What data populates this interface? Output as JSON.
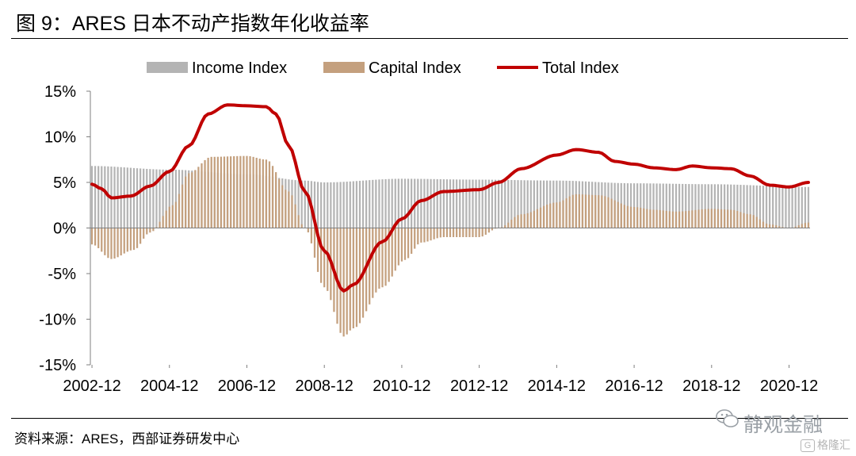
{
  "header": {
    "title": "图 9：ARES 日本不动产指数年化收益率"
  },
  "footer": {
    "source": "资料来源：ARES，西部证券研发中心"
  },
  "watermark": {
    "primary": "静观金融",
    "secondary": "格隆汇",
    "secondary_mark": "G"
  },
  "colors": {
    "income": "#b4b4b4",
    "capital": "#c4a07e",
    "total": "#c00000"
  },
  "chart_data": {
    "type": "bar",
    "title": "",
    "legend": {
      "placement": "top",
      "entries": [
        "Income Index",
        "Capital Index",
        "Total Index"
      ]
    },
    "ylim": [
      -15,
      15
    ],
    "ytick_values": [
      15,
      10,
      5,
      0,
      -5,
      -10,
      -15
    ],
    "ytick_labels": [
      "15%",
      "10%",
      "5%",
      "0%",
      "-5%",
      "-10%",
      "-15%"
    ],
    "xtick_labels": [
      "2002-12",
      "2004-12",
      "2006-12",
      "2008-12",
      "2010-12",
      "2012-12",
      "2014-12",
      "2016-12",
      "2018-12",
      "2020-12"
    ],
    "x_start": "2002-12",
    "x_end": "2021-06",
    "frequency": "monthly",
    "series": [
      {
        "name": "Income Index",
        "kind": "bar",
        "points": [
          [
            "2002-12",
            6.8
          ],
          [
            "2004-12",
            6.4
          ],
          [
            "2006-12",
            5.9
          ],
          [
            "2008-06",
            5.2
          ],
          [
            "2008-12",
            5.0
          ],
          [
            "2010-12",
            5.4
          ],
          [
            "2012-12",
            5.3
          ],
          [
            "2014-12",
            5.2
          ],
          [
            "2016-12",
            4.9
          ],
          [
            "2018-12",
            4.8
          ],
          [
            "2021-06",
            4.5
          ]
        ]
      },
      {
        "name": "Capital Index",
        "kind": "bar",
        "points": [
          [
            "2002-12",
            -1.8
          ],
          [
            "2003-06",
            -3.4
          ],
          [
            "2004-01",
            -2.4
          ],
          [
            "2004-06",
            -0.5
          ],
          [
            "2005-01",
            2.5
          ],
          [
            "2005-06",
            6.0
          ],
          [
            "2006-01",
            7.8
          ],
          [
            "2006-12",
            7.9
          ],
          [
            "2007-06",
            7.5
          ],
          [
            "2008-01",
            4.0
          ],
          [
            "2008-06",
            0.0
          ],
          [
            "2008-12",
            -6.5
          ],
          [
            "2009-06",
            -11.9
          ],
          [
            "2009-09",
            -11.0
          ],
          [
            "2010-06",
            -6.5
          ],
          [
            "2011-01",
            -3.5
          ],
          [
            "2011-06",
            -1.6
          ],
          [
            "2012-01",
            -1.0
          ],
          [
            "2012-12",
            -1.0
          ],
          [
            "2013-06",
            0.0
          ],
          [
            "2014-01",
            1.5
          ],
          [
            "2014-12",
            2.8
          ],
          [
            "2015-06",
            3.7
          ],
          [
            "2016-01",
            3.6
          ],
          [
            "2016-12",
            2.3
          ],
          [
            "2017-06",
            2.0
          ],
          [
            "2018-01",
            1.8
          ],
          [
            "2018-12",
            2.1
          ],
          [
            "2019-06",
            2.0
          ],
          [
            "2019-12",
            1.5
          ],
          [
            "2020-06",
            0.4
          ],
          [
            "2020-12",
            0.0
          ],
          [
            "2021-06",
            0.6
          ]
        ]
      },
      {
        "name": "Total Index",
        "kind": "line",
        "points": [
          [
            "2002-12",
            4.8
          ],
          [
            "2003-03",
            4.3
          ],
          [
            "2003-06",
            3.3
          ],
          [
            "2003-12",
            3.5
          ],
          [
            "2004-06",
            4.6
          ],
          [
            "2004-12",
            6.2
          ],
          [
            "2005-06",
            9.0
          ],
          [
            "2005-12",
            12.5
          ],
          [
            "2006-06",
            13.5
          ],
          [
            "2006-12",
            13.4
          ],
          [
            "2007-06",
            13.3
          ],
          [
            "2007-09",
            12.5
          ],
          [
            "2008-01",
            9.0
          ],
          [
            "2008-06",
            4.0
          ],
          [
            "2008-12",
            -2.5
          ],
          [
            "2009-06",
            -6.9
          ],
          [
            "2009-09",
            -6.2
          ],
          [
            "2010-06",
            -1.5
          ],
          [
            "2010-12",
            1.0
          ],
          [
            "2011-06",
            3.0
          ],
          [
            "2012-01",
            4.0
          ],
          [
            "2012-12",
            4.2
          ],
          [
            "2013-06",
            5.0
          ],
          [
            "2014-01",
            6.5
          ],
          [
            "2014-12",
            8.0
          ],
          [
            "2015-06",
            8.6
          ],
          [
            "2016-01",
            8.3
          ],
          [
            "2016-06",
            7.3
          ],
          [
            "2016-12",
            7.0
          ],
          [
            "2017-06",
            6.6
          ],
          [
            "2018-01",
            6.4
          ],
          [
            "2018-06",
            6.8
          ],
          [
            "2018-12",
            6.6
          ],
          [
            "2019-06",
            6.5
          ],
          [
            "2019-12",
            5.7
          ],
          [
            "2020-06",
            4.7
          ],
          [
            "2020-12",
            4.5
          ],
          [
            "2021-06",
            5.0
          ]
        ]
      }
    ]
  }
}
